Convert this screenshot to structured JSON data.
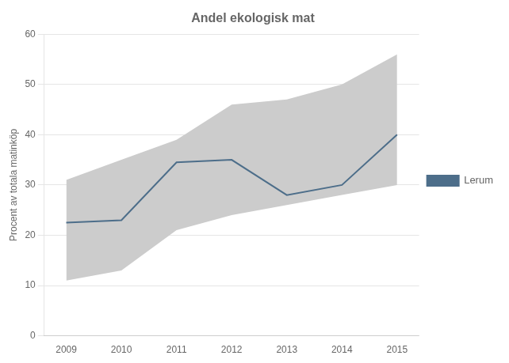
{
  "chart_data": {
    "type": "line",
    "title": "Andel ekologisk mat",
    "ylabel": "Procent av totala matinköp",
    "x": [
      2009,
      2010,
      2011,
      2012,
      2013,
      2014,
      2015
    ],
    "series": [
      {
        "name": "Lerum",
        "color": "#4d6e8a",
        "values": [
          22.5,
          23.0,
          34.5,
          35.0,
          28.0,
          30.0,
          40.0
        ]
      }
    ],
    "band": {
      "upper": [
        31.0,
        35.0,
        39.0,
        46.0,
        47.0,
        50.0,
        56.0
      ],
      "lower": [
        11.0,
        13.0,
        21.0,
        24.0,
        26.0,
        28.0,
        30.0
      ],
      "color": "#cccccc"
    },
    "xlim": [
      2008.6,
      2015.4
    ],
    "xticks": [
      2009,
      2010,
      2011,
      2012,
      2013,
      2014,
      2015
    ],
    "ylim": [
      0,
      60
    ],
    "yticks": [
      0,
      10,
      20,
      30,
      40,
      50,
      60
    ],
    "grid": "y",
    "legend": "right"
  }
}
